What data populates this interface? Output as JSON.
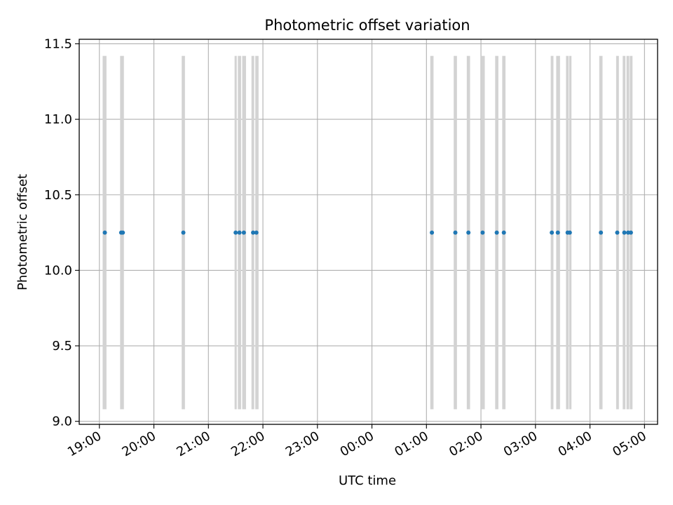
{
  "chart_data": {
    "type": "scatter",
    "title": "Photometric offset variation",
    "xlabel": "UTC time",
    "ylabel": "Photometric offset",
    "grid": true,
    "x_unit": "hours since 19:00 UTC",
    "xlim": [
      -0.37,
      10.24
    ],
    "ylim": [
      8.98,
      11.53
    ],
    "x_ticks": [
      {
        "value": 0,
        "label": "19:00"
      },
      {
        "value": 1,
        "label": "20:00"
      },
      {
        "value": 2,
        "label": "21:00"
      },
      {
        "value": 3,
        "label": "22:00"
      },
      {
        "value": 4,
        "label": "23:00"
      },
      {
        "value": 5,
        "label": "00:00"
      },
      {
        "value": 6,
        "label": "01:00"
      },
      {
        "value": 7,
        "label": "02:00"
      },
      {
        "value": 8,
        "label": "03:00"
      },
      {
        "value": 9,
        "label": "04:00"
      },
      {
        "value": 10,
        "label": "05:00"
      }
    ],
    "y_ticks": [
      {
        "value": 9.0,
        "label": "9.0"
      },
      {
        "value": 9.5,
        "label": "9.5"
      },
      {
        "value": 10.0,
        "label": "10.0"
      },
      {
        "value": 10.5,
        "label": "10.5"
      },
      {
        "value": 11.0,
        "label": "11.0"
      },
      {
        "value": 11.5,
        "label": "11.5"
      }
    ],
    "span_ymin": 9.08,
    "span_ymax": 11.42,
    "spans": [
      {
        "start": 0.06,
        "end": 0.13
      },
      {
        "start": 0.38,
        "end": 0.45
      },
      {
        "start": 1.51,
        "end": 1.57
      },
      {
        "start": 2.48,
        "end": 2.52
      },
      {
        "start": 2.54,
        "end": 2.6
      },
      {
        "start": 2.62,
        "end": 2.69
      },
      {
        "start": 2.79,
        "end": 2.84
      },
      {
        "start": 2.86,
        "end": 2.92
      },
      {
        "start": 6.07,
        "end": 6.13
      },
      {
        "start": 6.5,
        "end": 6.56
      },
      {
        "start": 6.74,
        "end": 6.8
      },
      {
        "start": 7.0,
        "end": 7.07
      },
      {
        "start": 7.26,
        "end": 7.32
      },
      {
        "start": 7.39,
        "end": 7.45
      },
      {
        "start": 8.28,
        "end": 8.33
      },
      {
        "start": 8.38,
        "end": 8.45
      },
      {
        "start": 8.56,
        "end": 8.61
      },
      {
        "start": 8.62,
        "end": 8.66
      },
      {
        "start": 9.17,
        "end": 9.23
      },
      {
        "start": 9.48,
        "end": 9.53
      },
      {
        "start": 9.6,
        "end": 9.65
      },
      {
        "start": 9.67,
        "end": 9.72
      },
      {
        "start": 9.73,
        "end": 9.78
      }
    ],
    "series": [
      {
        "name": "Photometric offset",
        "color": "#1f77b4",
        "x": [
          0.1,
          0.4,
          0.43,
          1.54,
          2.5,
          2.57,
          2.65,
          2.82,
          2.88,
          6.1,
          6.53,
          6.77,
          7.03,
          7.29,
          7.42,
          8.3,
          8.41,
          8.59,
          8.63,
          9.2,
          9.5,
          9.63,
          9.7,
          9.75
        ],
        "y": [
          10.25,
          10.25,
          10.25,
          10.25,
          10.25,
          10.25,
          10.25,
          10.25,
          10.25,
          10.25,
          10.25,
          10.25,
          10.25,
          10.25,
          10.25,
          10.25,
          10.25,
          10.25,
          10.25,
          10.25,
          10.25,
          10.25,
          10.25,
          10.25
        ]
      }
    ],
    "colors": {
      "span": "#d3d3d3",
      "grid": "#b0b0b0",
      "axes": "#000000"
    }
  }
}
